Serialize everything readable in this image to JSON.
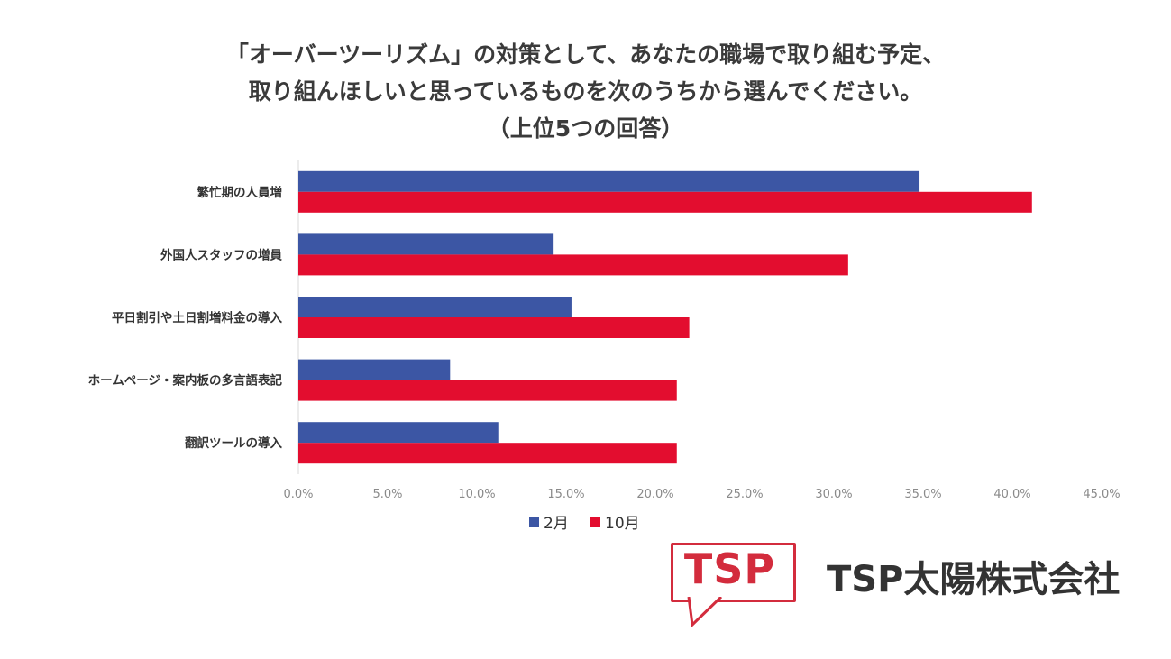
{
  "chart_data": {
    "type": "bar",
    "orientation": "horizontal",
    "title_lines": [
      "「オーバーツーリズム」の対策として、あなたの職場で取り組む予定、",
      "取り組んほしいと思っているものを次のうちから選んでください。",
      "（上位5つの回答）"
    ],
    "categories": [
      "繁忙期の人員増",
      "外国人スタッフの増員",
      "平日割引や土日割増料金の導入",
      "ホームページ・案内板の多言語表記",
      "翻訳ツールの導入"
    ],
    "series": [
      {
        "name": "2月",
        "color": "#3c56a4",
        "values": [
          34.8,
          14.3,
          15.3,
          8.5,
          11.2
        ]
      },
      {
        "name": "10月",
        "color": "#e30d2f",
        "values": [
          41.1,
          30.8,
          21.9,
          21.2,
          21.2
        ]
      }
    ],
    "xlim": [
      0,
      45
    ],
    "x_ticks": [
      "0.0%",
      "5.0%",
      "10.0%",
      "15.0%",
      "20.0%",
      "25.0%",
      "30.0%",
      "35.0%",
      "40.0%",
      "45.0%"
    ],
    "grid": false,
    "legend_position": "bottom"
  },
  "logo": {
    "mark_text": "TSP",
    "company_name": "TSP太陽株式会社",
    "brand_color": "#d32c3d"
  }
}
